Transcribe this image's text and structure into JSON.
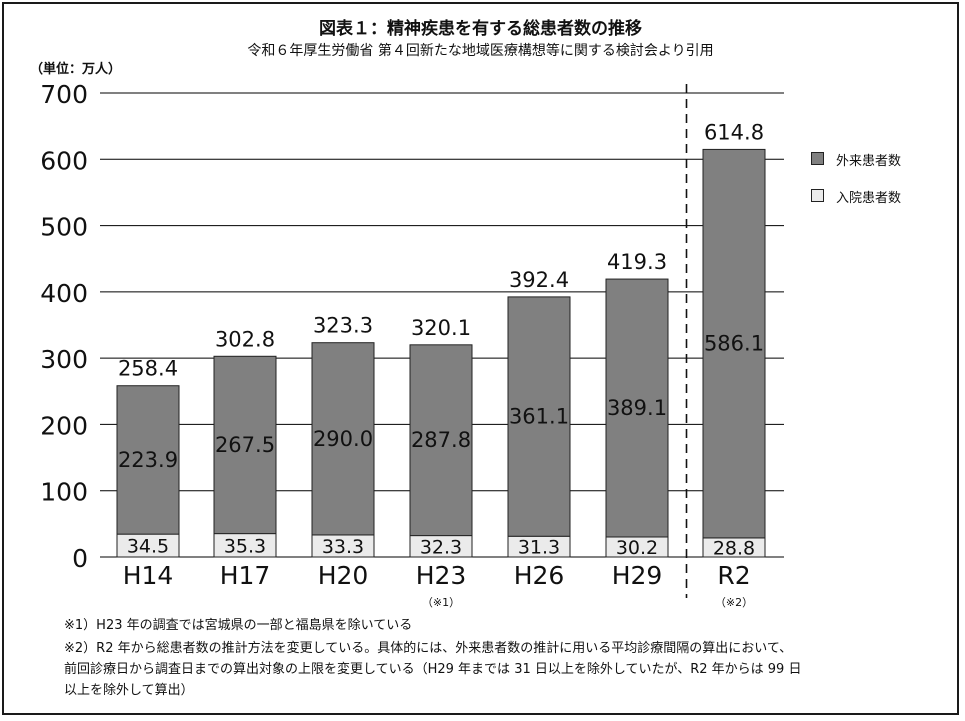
{
  "title": "図表１：精神疾患を有する総患者数の推移",
  "subtitle": "令和６年厚生労働省 第４回新たな地域医療構想等に関する検討会より引用",
  "unit_label": "（単位：万人）",
  "legend": {
    "outpatient": "外来患者数",
    "inpatient": "入院患者数"
  },
  "notes": [
    "※1）H23 年の調査では宮城県の一部と福島県を除いている",
    "※2）R2 年から総患者数の推計方法を変更している。具体的には、外来患者数の推計に用いる平均診療間隔の算出において、",
    "前回診療日から調査日までの算出対象の上限を変更している（H29 年までは 31 日以上を除外していたが、R2 年からは 99 日",
    "以上を除外して算出）"
  ],
  "colors": {
    "outpatient": "#808080",
    "inpatient": "#ebebeb",
    "grid": "#000000"
  },
  "chart_data": {
    "type": "bar",
    "stacked": true,
    "categories": [
      "H14",
      "H17",
      "H20",
      "H23",
      "H26",
      "H29",
      "R2"
    ],
    "category_notes": [
      "",
      "",
      "",
      "（※1）",
      "",
      "",
      "（※2）"
    ],
    "series": [
      {
        "name": "入院患者数",
        "values": [
          34.5,
          35.3,
          33.3,
          32.3,
          31.3,
          30.2,
          28.8
        ],
        "labels": [
          "34.5",
          "35.3",
          "33.3",
          "32.3",
          "31.3",
          "30.2",
          "28.8"
        ]
      },
      {
        "name": "外来患者数",
        "values": [
          223.9,
          267.5,
          290.0,
          287.8,
          361.1,
          389.1,
          586.1
        ],
        "labels": [
          "223.9",
          "267.5",
          "290.0",
          "287.8",
          "361.1",
          "389.1",
          "586.1"
        ]
      }
    ],
    "totals": [
      258.4,
      302.8,
      323.3,
      320.1,
      392.4,
      419.3,
      614.8
    ],
    "total_labels": [
      "258.4",
      "302.8",
      "323.3",
      "320.1",
      "392.4",
      "419.3",
      "614.8"
    ],
    "ylim": [
      0,
      700
    ],
    "yticks": [
      0,
      100,
      200,
      300,
      400,
      500,
      600,
      700
    ],
    "grid": true,
    "legend_position": "right",
    "break_line_between": [
      "H29",
      "R2"
    ]
  }
}
